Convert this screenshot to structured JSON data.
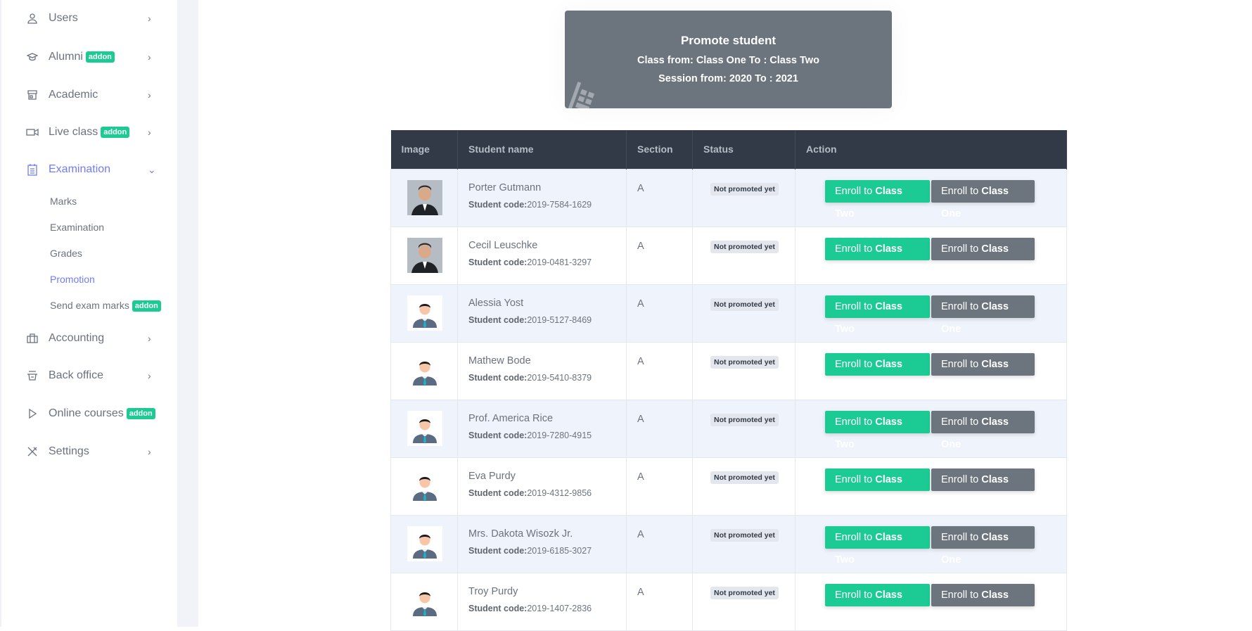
{
  "sidebar": {
    "items": [
      {
        "label": "Users",
        "icon": "user-icon",
        "badge": null
      },
      {
        "label": "Alumni",
        "icon": "graduation-cap-icon",
        "badge": "addon"
      },
      {
        "label": "Academic",
        "icon": "school-icon",
        "badge": null
      },
      {
        "label": "Live class",
        "icon": "video-icon",
        "badge": "addon"
      },
      {
        "label": "Examination",
        "icon": "clipboard-icon",
        "badge": null,
        "active": true
      },
      {
        "label": "Accounting",
        "icon": "briefcase-icon",
        "badge": null
      },
      {
        "label": "Back office",
        "icon": "basket-icon",
        "badge": null
      },
      {
        "label": "Online courses",
        "icon": "play-icon",
        "badge": "addon"
      },
      {
        "label": "Settings",
        "icon": "tools-icon",
        "badge": null
      }
    ],
    "submenu": [
      {
        "label": "Marks"
      },
      {
        "label": "Examination"
      },
      {
        "label": "Grades"
      },
      {
        "label": "Promotion",
        "active": true
      },
      {
        "label": "Send exam marks",
        "badge": "addon"
      }
    ]
  },
  "card": {
    "title": "Promote student",
    "class_line": "Class from: Class One To : Class Two",
    "session_line": "Session from: 2020 To : 2021"
  },
  "table": {
    "headers": [
      "Image",
      "Student name",
      "Section",
      "Status",
      "Action"
    ],
    "code_label": "Student code:",
    "enroll_prefix": "Enroll to ",
    "next_class": "Class Two",
    "current_class": "Class One",
    "rows": [
      {
        "name": "Porter Gutmann",
        "code": "2019-7584-1629",
        "section": "A",
        "status": "Not promoted yet",
        "photo": "photo"
      },
      {
        "name": "Cecil Leuschke",
        "code": "2019-0481-3297",
        "section": "A",
        "status": "Not promoted yet",
        "photo": "photo"
      },
      {
        "name": "Alessia Yost",
        "code": "2019-5127-8469",
        "section": "A",
        "status": "Not promoted yet",
        "photo": "placeholder"
      },
      {
        "name": "Mathew Bode",
        "code": "2019-5410-8379",
        "section": "A",
        "status": "Not promoted yet",
        "photo": "placeholder"
      },
      {
        "name": "Prof. America Rice",
        "code": "2019-7280-4915",
        "section": "A",
        "status": "Not promoted yet",
        "photo": "placeholder"
      },
      {
        "name": "Eva Purdy",
        "code": "2019-4312-9856",
        "section": "A",
        "status": "Not promoted yet",
        "photo": "placeholder"
      },
      {
        "name": "Mrs. Dakota Wisozk Jr.",
        "code": "2019-6185-3027",
        "section": "A",
        "status": "Not promoted yet",
        "photo": "placeholder"
      },
      {
        "name": "Troy Purdy",
        "code": "2019-1407-2836",
        "section": "A",
        "status": "Not promoted yet",
        "photo": "placeholder"
      }
    ]
  },
  "colors": {
    "accent": "#727cf5",
    "addon": "#1ccb94",
    "header": "#313a46",
    "secondary": "#6c757d"
  }
}
